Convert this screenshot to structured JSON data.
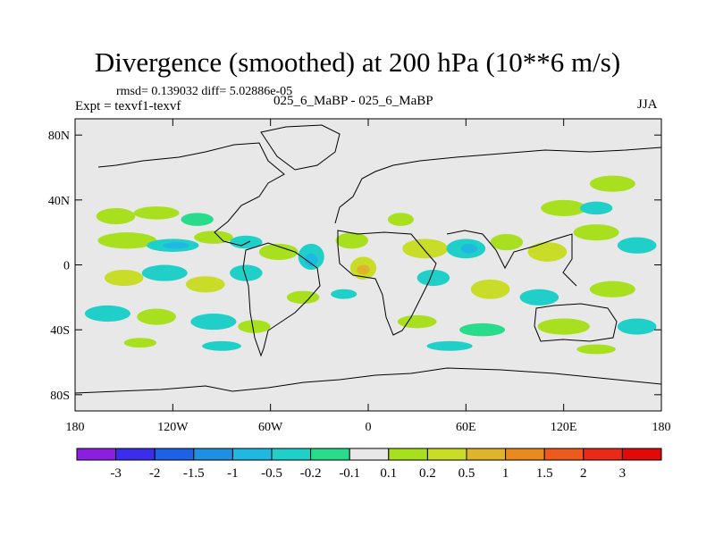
{
  "chart_data": {
    "type": "heatmap",
    "title": "Divergence (smoothed) at 200 hPa (10**6 m/s)",
    "stats_label": "rmsd= 0.139032 diff= 5.02886e-05",
    "expt_label": "Expt = texvf1-texvf",
    "case_label": "025_6_MaBP - 025_6_MaBP",
    "season_label": "JJA",
    "x_range": [
      -180,
      180
    ],
    "y_range": [
      -90,
      90
    ],
    "x_ticks": [
      {
        "value": -180,
        "label": "180"
      },
      {
        "value": -120,
        "label": "120W"
      },
      {
        "value": -60,
        "label": "60W"
      },
      {
        "value": 0,
        "label": "0"
      },
      {
        "value": 60,
        "label": "60E"
      },
      {
        "value": 120,
        "label": "120E"
      },
      {
        "value": 180,
        "label": "180"
      }
    ],
    "y_ticks": [
      {
        "value": 80,
        "label": "80N"
      },
      {
        "value": 40,
        "label": "40N"
      },
      {
        "value": 0,
        "label": "0"
      },
      {
        "value": -40,
        "label": "40S"
      },
      {
        "value": -80,
        "label": "80S"
      }
    ],
    "colorbar": {
      "labels": [
        "-3",
        "-2",
        "-1.5",
        "-1",
        "-0.5",
        "-0.2",
        "-0.1",
        "0.1",
        "0.2",
        "0.5",
        "1",
        "1.5",
        "2",
        "3"
      ],
      "colors": [
        "#8a1fe0",
        "#3c2ee8",
        "#1e60e6",
        "#1e90e0",
        "#1eb8e0",
        "#20d0c8",
        "#28dc8c",
        "#e8e8e8",
        "#a8e020",
        "#c8dc28",
        "#e0b42a",
        "#e88a1e",
        "#ec5a1e",
        "#e82a18",
        "#e00a0a"
      ]
    },
    "field_blobs": [
      {
        "lon": -155,
        "lat": 30,
        "rlon": 12,
        "rlat": 5,
        "level": 8
      },
      {
        "lon": -130,
        "lat": 32,
        "rlon": 14,
        "rlat": 4,
        "level": 8
      },
      {
        "lon": -105,
        "lat": 28,
        "rlon": 10,
        "rlat": 4,
        "level": 6
      },
      {
        "lon": -148,
        "lat": 15,
        "rlon": 18,
        "rlat": 5,
        "level": 8
      },
      {
        "lon": -120,
        "lat": 12,
        "rlon": 16,
        "rlat": 4,
        "level": 5
      },
      {
        "lon": -118,
        "lat": 12,
        "rlon": 8,
        "rlat": 2,
        "level": 4
      },
      {
        "lon": -95,
        "lat": 17,
        "rlon": 12,
        "rlat": 4,
        "level": 8
      },
      {
        "lon": -75,
        "lat": 14,
        "rlon": 10,
        "rlat": 4,
        "level": 5
      },
      {
        "lon": -55,
        "lat": 8,
        "rlon": 12,
        "rlat": 5,
        "level": 8
      },
      {
        "lon": -35,
        "lat": 5,
        "rlon": 8,
        "rlat": 8,
        "level": 5
      },
      {
        "lon": -35,
        "lat": 3,
        "rlon": 4,
        "rlat": 4,
        "level": 4
      },
      {
        "lon": -10,
        "lat": 15,
        "rlon": 10,
        "rlat": 5,
        "level": 8
      },
      {
        "lon": -3,
        "lat": -2,
        "rlon": 8,
        "rlat": 7,
        "level": 9
      },
      {
        "lon": -3,
        "lat": -3,
        "rlon": 4,
        "rlat": 3,
        "level": 10
      },
      {
        "lon": 20,
        "lat": 28,
        "rlon": 8,
        "rlat": 4,
        "level": 8
      },
      {
        "lon": 35,
        "lat": 10,
        "rlon": 14,
        "rlat": 6,
        "level": 9
      },
      {
        "lon": 60,
        "lat": 10,
        "rlon": 12,
        "rlat": 6,
        "level": 5
      },
      {
        "lon": 62,
        "lat": 10,
        "rlon": 5,
        "rlat": 3,
        "level": 4
      },
      {
        "lon": 85,
        "lat": 14,
        "rlon": 10,
        "rlat": 5,
        "level": 8
      },
      {
        "lon": 110,
        "lat": 8,
        "rlon": 12,
        "rlat": 6,
        "level": 9
      },
      {
        "lon": 140,
        "lat": 20,
        "rlon": 14,
        "rlat": 5,
        "level": 8
      },
      {
        "lon": 165,
        "lat": 12,
        "rlon": 12,
        "rlat": 5,
        "level": 5
      },
      {
        "lon": 150,
        "lat": 50,
        "rlon": 14,
        "rlat": 5,
        "level": 8
      },
      {
        "lon": 120,
        "lat": 35,
        "rlon": 14,
        "rlat": 5,
        "level": 8
      },
      {
        "lon": 140,
        "lat": 35,
        "rlon": 10,
        "rlat": 4,
        "level": 5
      },
      {
        "lon": -150,
        "lat": -8,
        "rlon": 12,
        "rlat": 5,
        "level": 9
      },
      {
        "lon": -125,
        "lat": -5,
        "rlon": 14,
        "rlat": 5,
        "level": 5
      },
      {
        "lon": -100,
        "lat": -12,
        "rlon": 12,
        "rlat": 5,
        "level": 9
      },
      {
        "lon": -75,
        "lat": -5,
        "rlon": 10,
        "rlat": 5,
        "level": 5
      },
      {
        "lon": -40,
        "lat": -20,
        "rlon": 10,
        "rlat": 4,
        "level": 8
      },
      {
        "lon": -15,
        "lat": -18,
        "rlon": 8,
        "rlat": 3,
        "level": 5
      },
      {
        "lon": 40,
        "lat": -8,
        "rlon": 10,
        "rlat": 5,
        "level": 5
      },
      {
        "lon": 75,
        "lat": -15,
        "rlon": 12,
        "rlat": 6,
        "level": 9
      },
      {
        "lon": 105,
        "lat": -20,
        "rlon": 12,
        "rlat": 5,
        "level": 5
      },
      {
        "lon": 150,
        "lat": -15,
        "rlon": 14,
        "rlat": 5,
        "level": 8
      },
      {
        "lon": -160,
        "lat": -30,
        "rlon": 14,
        "rlat": 5,
        "level": 5
      },
      {
        "lon": -130,
        "lat": -32,
        "rlon": 12,
        "rlat": 5,
        "level": 8
      },
      {
        "lon": -95,
        "lat": -35,
        "rlon": 14,
        "rlat": 5,
        "level": 5
      },
      {
        "lon": -70,
        "lat": -38,
        "rlon": 10,
        "rlat": 4,
        "level": 8
      },
      {
        "lon": 30,
        "lat": -35,
        "rlon": 12,
        "rlat": 4,
        "level": 8
      },
      {
        "lon": 70,
        "lat": -40,
        "rlon": 14,
        "rlat": 4,
        "level": 6
      },
      {
        "lon": 120,
        "lat": -38,
        "rlon": 16,
        "rlat": 5,
        "level": 8
      },
      {
        "lon": 165,
        "lat": -38,
        "rlon": 12,
        "rlat": 5,
        "level": 5
      },
      {
        "lon": -140,
        "lat": -48,
        "rlon": 10,
        "rlat": 3,
        "level": 8
      },
      {
        "lon": -90,
        "lat": -50,
        "rlon": 12,
        "rlat": 3,
        "level": 5
      },
      {
        "lon": 50,
        "lat": -50,
        "rlon": 14,
        "rlat": 3,
        "level": 5
      },
      {
        "lon": 140,
        "lat": -52,
        "rlon": 12,
        "rlat": 3,
        "level": 8
      }
    ]
  }
}
